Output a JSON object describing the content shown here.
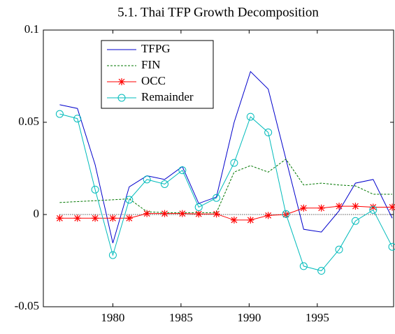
{
  "chart_data": {
    "type": "line",
    "title": "5.1. Thai TFP Growth Decomposition",
    "x": [
      1976.1,
      1977.4,
      1978.7,
      1980.0,
      1981.2,
      1982.5,
      1983.8,
      1985.1,
      1986.3,
      1987.6,
      1988.9,
      1990.1,
      1991.4,
      1992.7,
      1994.0,
      1995.3,
      1996.6,
      1997.8,
      1999.1,
      2000.5
    ],
    "series": [
      {
        "name": "TFPG",
        "color": "#0000cc",
        "dash": "none",
        "marker": "none",
        "values": [
          0.0595,
          0.0575,
          0.027,
          -0.0155,
          0.015,
          0.021,
          0.019,
          0.026,
          0.006,
          0.0095,
          0.05,
          0.0775,
          0.068,
          0.03,
          -0.008,
          -0.0095,
          0.002,
          0.017,
          0.019,
          -0.002
        ]
      },
      {
        "name": "FIN",
        "color": "#007700",
        "dash": "3,2",
        "marker": "none",
        "values": [
          0.0065,
          0.007,
          0.0075,
          0.008,
          0.0085,
          0.0015,
          0.001,
          0.001,
          0.001,
          0.001,
          0.023,
          0.0265,
          0.023,
          0.03,
          0.016,
          0.017,
          0.016,
          0.0155,
          0.011,
          0.011
        ]
      },
      {
        "name": "OCC",
        "color": "#ff0000",
        "dash": "none",
        "marker": "star",
        "values": [
          -0.002,
          -0.002,
          -0.002,
          -0.002,
          -0.002,
          0.0005,
          0.0005,
          0.0005,
          0.0003,
          0.0003,
          -0.003,
          -0.003,
          -0.0005,
          0,
          0.0035,
          0.0035,
          0.0045,
          0.0045,
          0.004,
          0.004
        ]
      },
      {
        "name": "Remainder",
        "color": "#00bbbb",
        "dash": "none",
        "marker": "circle",
        "values": [
          0.0545,
          0.052,
          0.0135,
          -0.022,
          0.008,
          0.019,
          0.0165,
          0.024,
          0.004,
          0.009,
          0.028,
          0.053,
          0.0445,
          0.0003,
          -0.028,
          -0.0305,
          -0.019,
          -0.0035,
          0.0025,
          -0.0175
        ]
      }
    ],
    "xlim": [
      1974.9,
      2000.6
    ],
    "xticks": [
      1980,
      1985,
      1990,
      1995
    ],
    "ylim": [
      -0.05,
      0.1
    ],
    "yticks": [
      -0.05,
      0,
      0.05,
      0.1
    ],
    "zero_line": true,
    "legend": "upper-left"
  }
}
